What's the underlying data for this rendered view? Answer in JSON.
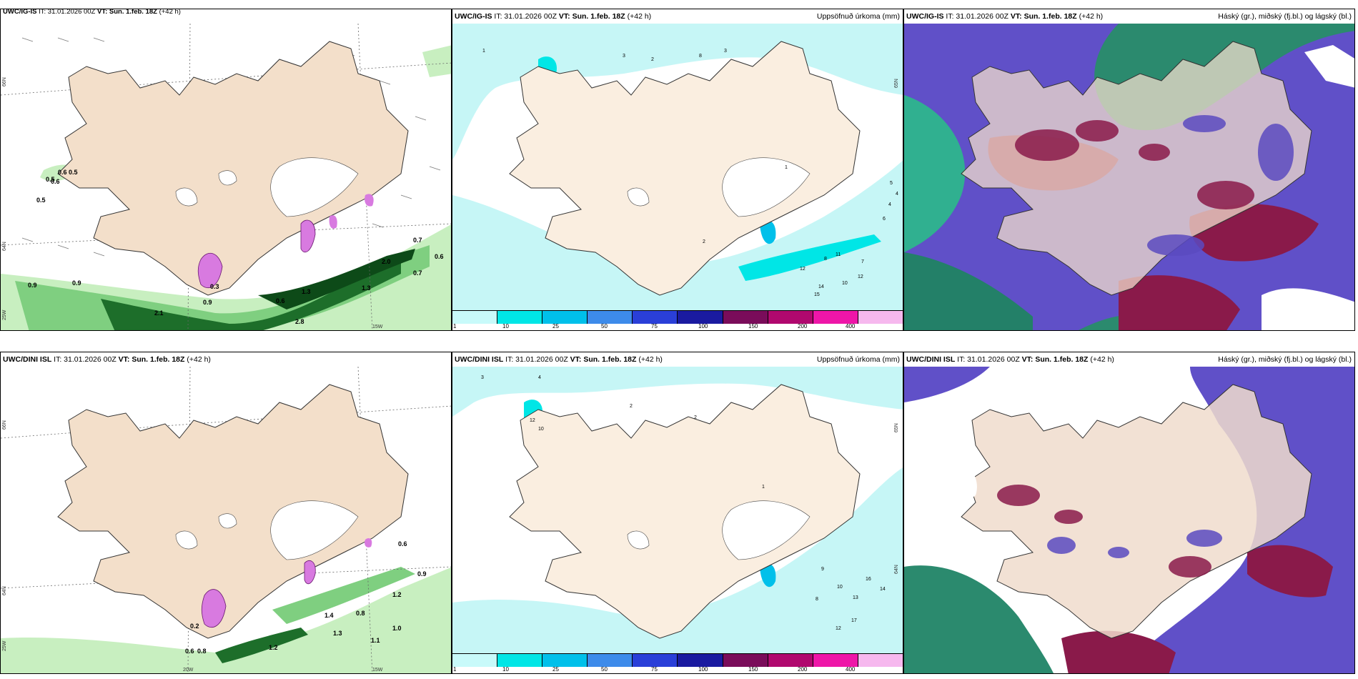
{
  "panels": {
    "top_left": {
      "model": "UWC/IG-IS",
      "it": " IT: 31.01.2026 00Z ",
      "vt_label": "VT: Sun. 1.feb. 18Z",
      "lead": " (+42 h)"
    },
    "top_mid": {
      "model": "UWC/IG-IS",
      "it": " IT: 31.01.2026 00Z ",
      "vt_label": "VT: Sun. 1.feb. 18Z",
      "lead": " (+42 h)",
      "right": "Uppsöfnuð úrkoma (mm)"
    },
    "top_right": {
      "model": "UWC/IG-IS",
      "it": " IT: 31.01.2026 00Z ",
      "vt_label": "VT: Sun. 1.feb. 18Z",
      "lead": " (+42 h)",
      "right": "Háský (gr.), miðský (fj.bl.) og lágský (bl.)"
    },
    "bot_left": {
      "model": "UWC/DINI ISL",
      "it": " IT: 31.01.2026 00Z ",
      "vt_label": "VT: Sun. 1.feb. 18Z",
      "lead": " (+42 h)"
    },
    "bot_mid": {
      "model": "UWC/DINI ISL",
      "it": " IT: 31.01.2026 00Z ",
      "vt_label": "VT: Sun. 1.feb. 18Z",
      "lead": " (+42 h)",
      "right": "Uppsöfnuð úrkoma (mm)"
    },
    "bot_right": {
      "model": "UWC/DINI ISL",
      "it": " IT: 31.01.2026 00Z ",
      "vt_label": "VT: Sun. 1.feb. 18Z",
      "lead": " (+42 h)",
      "right": "Háský (gr.), miðský (fj.bl.) og lágský (bl.)"
    }
  },
  "axes": {
    "lat_66": "66N",
    "lat_64": "64N",
    "lat_25w": "25W",
    "lon_20w": "20W",
    "lon_15w": "15W",
    "lat_65": "65N"
  },
  "precip_colorbar": {
    "ticks": [
      "1",
      "10",
      "25",
      "50",
      "75",
      "100",
      "150",
      "200",
      "400"
    ],
    "colors": [
      "#c8fafa",
      "#00e6e6",
      "#00c0ea",
      "#3d8bea",
      "#2a3fd8",
      "#1a1aa0",
      "#7a0c5a",
      "#b0086e",
      "#ee16a8",
      "#f6b8ee"
    ]
  },
  "wind_labels_top": [
    "0.5",
    "0.6",
    "0.6",
    "0.5",
    "0.7",
    "0.6",
    "0.7",
    "0.9",
    "0.9",
    "2.1",
    "0.9",
    "0.6",
    "2.0",
    "1.3",
    "1.3",
    "0.7",
    "0.3",
    "0.5",
    "2.8"
  ],
  "wind_labels_bot": [
    "0.6",
    "0.9",
    "1.2",
    "1.0",
    "1.1",
    "1.3",
    "0.8",
    "1.4",
    "1.2",
    "0.8",
    "0.6",
    "0.2"
  ],
  "precip_labels_top": [
    "1",
    "3",
    "2",
    "8",
    "3",
    "1",
    "2",
    "4",
    "15",
    "12",
    "11",
    "14",
    "12",
    "10",
    "8",
    "7",
    "6",
    "5",
    "4"
  ],
  "precip_labels_bot": [
    "3",
    "4",
    "12",
    "10",
    "2",
    "2",
    "1",
    "16",
    "14",
    "13",
    "10",
    "9",
    "8",
    "17",
    "12"
  ],
  "colors": {
    "land": "#f7ebdc",
    "glacier": "#ffffff",
    "sea_precip": "#c6f6f6",
    "cloud_high": "#6a1a4a",
    "cloud_mid": "#2a2ad0",
    "cloud_low": "#2ec4a0"
  }
}
